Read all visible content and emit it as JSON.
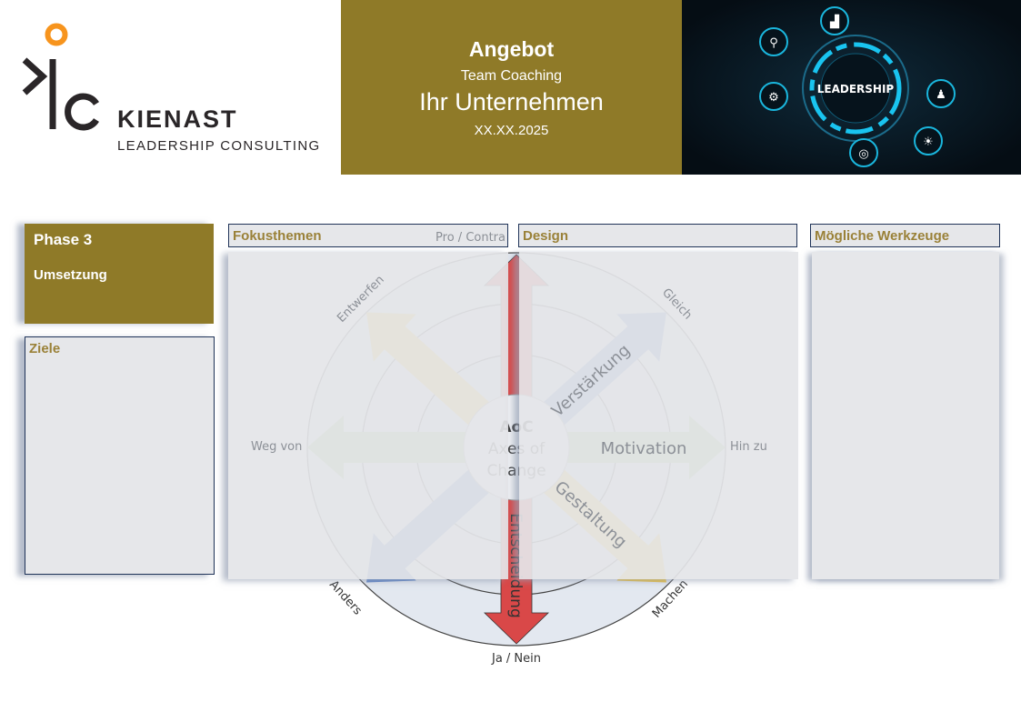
{
  "header": {
    "logo": {
      "brand": "KIENAST",
      "tagline": "LEADERSHIP CONSULTING",
      "mark": "kc"
    },
    "title": "Angebot",
    "subtitle": "Team Coaching",
    "company": "Ihr Unternehmen",
    "date": "XX.XX.2025",
    "hero_image": {
      "label": "LEADERSHIP",
      "icons": [
        "search-icon",
        "chart-icon",
        "gears-icon",
        "person-icon",
        "lightbulb-icon",
        "target-icon"
      ]
    }
  },
  "phase": {
    "title": "Phase 3",
    "subtitle": "Umsetzung"
  },
  "sections": {
    "ziele": "Ziele",
    "fokusthemen": "Fokusthemen",
    "design": "Design",
    "werkzeuge": "Mögliche Werkzeuge"
  },
  "diagram": {
    "center": {
      "abbr": "AoC",
      "line1": "Axes of",
      "line2": "Change"
    },
    "poles": {
      "top": "Pro / Contra",
      "bottom": "Ja / Nein",
      "left": "Weg von",
      "right": "Hin zu",
      "top_left": "Entwerfen",
      "top_right": "Gleich",
      "bottom_left": "Anders",
      "bottom_right": "Machen"
    },
    "axes": {
      "vertical": "Entscheidung",
      "horizontal": "Motivation",
      "diag_up": "Verstärkung",
      "diag_down": "Gestaltung"
    }
  },
  "colors": {
    "olive": "#8f7a28",
    "title_text": "#9a8138",
    "red": "#d94848",
    "blue": "#5b82c8",
    "yellow": "#eec13a",
    "green": "#9fc482",
    "navy": "#1f3358"
  }
}
